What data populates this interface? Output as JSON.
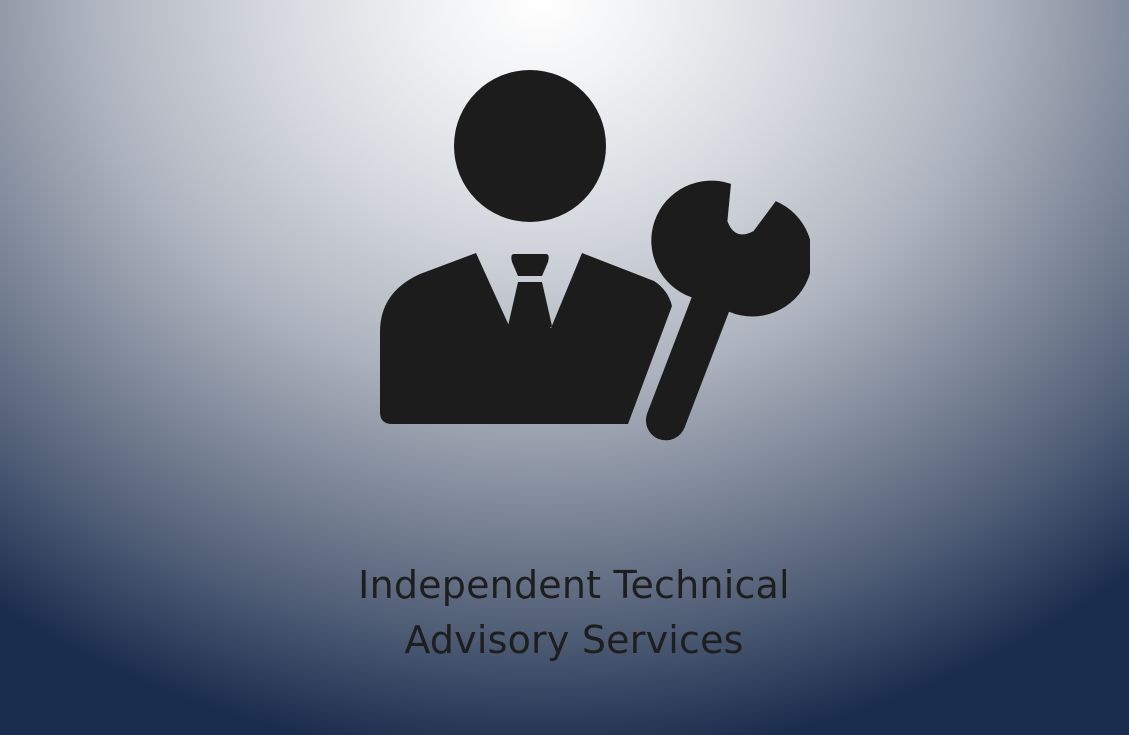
{
  "slide": {
    "icon": "technical-advisor-icon",
    "title_line_1": "Independent Technical",
    "title_line_2": "Advisory Services",
    "colors": {
      "icon": "#1c1c1c",
      "text": "#1e1e1e",
      "background_center": "#ffffff",
      "background_edge": "#1b2d4e"
    }
  }
}
